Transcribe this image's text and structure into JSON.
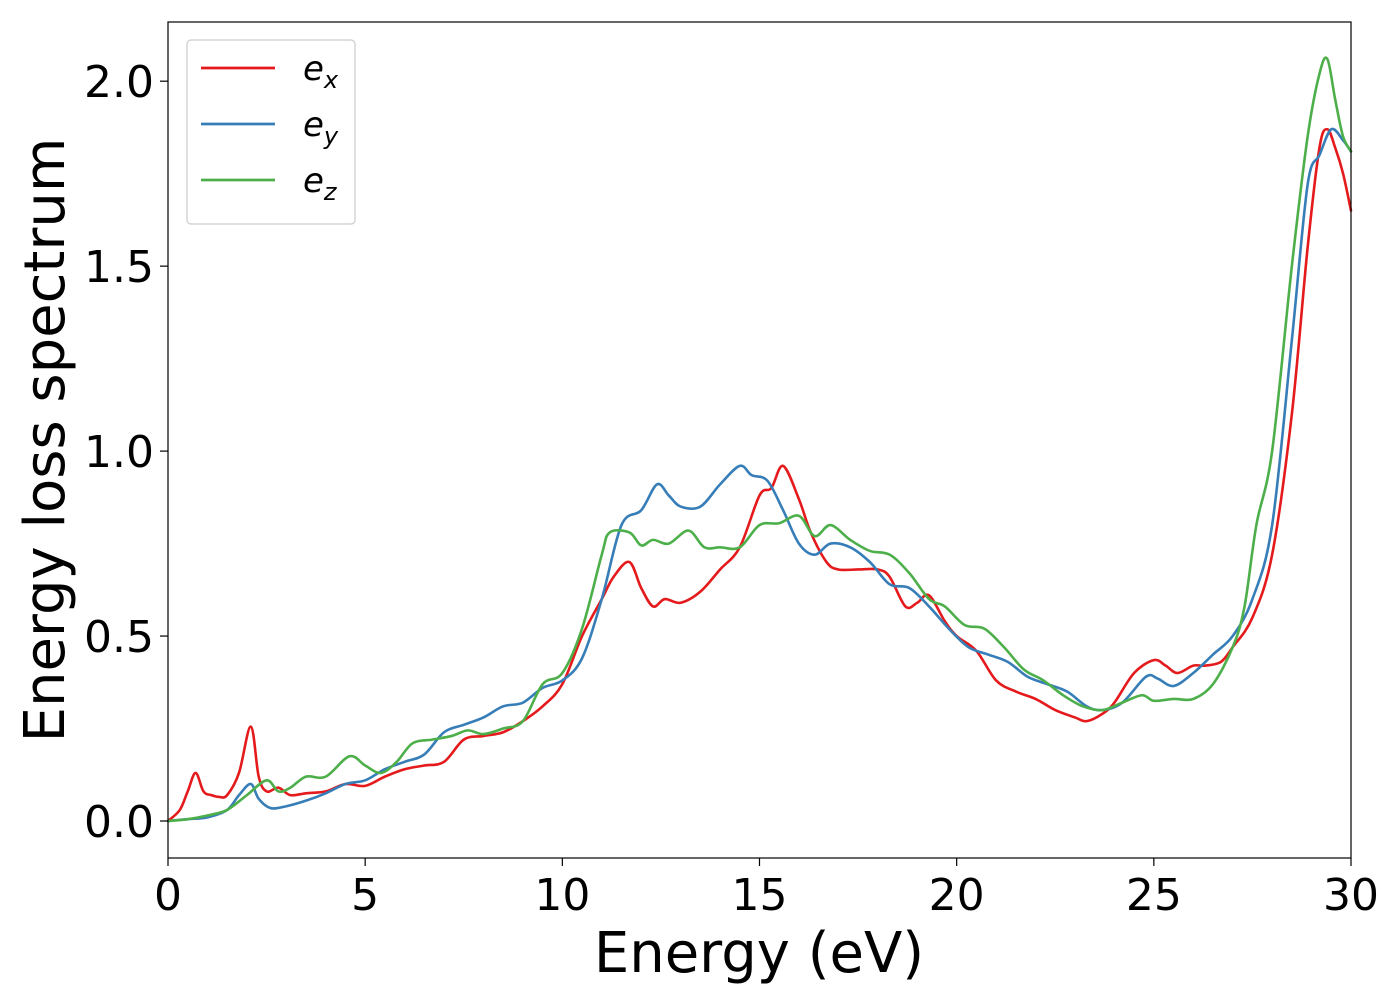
{
  "chart_data": {
    "type": "line",
    "title": "",
    "xlabel": "Energy (eV)",
    "ylabel": "Energy loss spectrum",
    "xlim": [
      0,
      30
    ],
    "ylim": [
      -0.1,
      2.16
    ],
    "xticks": [
      0,
      5,
      10,
      15,
      20,
      25,
      30
    ],
    "xtick_labels": [
      "0",
      "5",
      "10",
      "15",
      "20",
      "25",
      "30"
    ],
    "yticks": [
      0.0,
      0.5,
      1.0,
      1.5,
      2.0
    ],
    "ytick_labels": [
      "0.0",
      "0.5",
      "1.0",
      "1.5",
      "2.0"
    ],
    "grid": false,
    "legend_position": "top-left",
    "series": [
      {
        "name": "e_x",
        "legend_base": "e",
        "legend_sub": "x",
        "color": "#e41a1c",
        "points": [
          [
            0,
            0
          ],
          [
            0.3,
            0.03
          ],
          [
            0.5,
            0.08
          ],
          [
            0.7,
            0.13
          ],
          [
            0.9,
            0.08
          ],
          [
            1.1,
            0.07
          ],
          [
            1.3,
            0.065
          ],
          [
            1.5,
            0.07
          ],
          [
            1.8,
            0.13
          ],
          [
            2.1,
            0.255
          ],
          [
            2.3,
            0.12
          ],
          [
            2.5,
            0.08
          ],
          [
            2.8,
            0.09
          ],
          [
            3.1,
            0.07
          ],
          [
            3.5,
            0.075
          ],
          [
            4,
            0.08
          ],
          [
            4.5,
            0.1
          ],
          [
            5,
            0.095
          ],
          [
            5.5,
            0.12
          ],
          [
            6,
            0.14
          ],
          [
            6.5,
            0.15
          ],
          [
            7,
            0.16
          ],
          [
            7.5,
            0.22
          ],
          [
            8,
            0.23
          ],
          [
            8.5,
            0.24
          ],
          [
            9,
            0.27
          ],
          [
            9.5,
            0.31
          ],
          [
            10,
            0.37
          ],
          [
            10.5,
            0.5
          ],
          [
            11,
            0.6
          ],
          [
            11.3,
            0.66
          ],
          [
            11.7,
            0.7
          ],
          [
            12,
            0.63
          ],
          [
            12.3,
            0.58
          ],
          [
            12.6,
            0.6
          ],
          [
            13,
            0.59
          ],
          [
            13.5,
            0.62
          ],
          [
            14,
            0.68
          ],
          [
            14.5,
            0.74
          ],
          [
            15,
            0.88
          ],
          [
            15.3,
            0.9
          ],
          [
            15.6,
            0.96
          ],
          [
            16,
            0.87
          ],
          [
            16.3,
            0.78
          ],
          [
            16.7,
            0.7
          ],
          [
            17,
            0.68
          ],
          [
            17.5,
            0.68
          ],
          [
            18,
            0.68
          ],
          [
            18.3,
            0.66
          ],
          [
            18.7,
            0.58
          ],
          [
            19,
            0.59
          ],
          [
            19.3,
            0.61
          ],
          [
            19.7,
            0.54
          ],
          [
            20,
            0.5
          ],
          [
            20.5,
            0.46
          ],
          [
            21,
            0.38
          ],
          [
            21.5,
            0.35
          ],
          [
            22,
            0.33
          ],
          [
            22.5,
            0.3
          ],
          [
            23,
            0.28
          ],
          [
            23.3,
            0.27
          ],
          [
            23.7,
            0.29
          ],
          [
            24,
            0.32
          ],
          [
            24.5,
            0.4
          ],
          [
            25,
            0.435
          ],
          [
            25.3,
            0.42
          ],
          [
            25.6,
            0.4
          ],
          [
            26,
            0.42
          ],
          [
            26.3,
            0.42
          ],
          [
            26.7,
            0.43
          ],
          [
            27,
            0.47
          ],
          [
            27.5,
            0.55
          ],
          [
            28,
            0.72
          ],
          [
            28.5,
            1.1
          ],
          [
            28.9,
            1.55
          ],
          [
            29.2,
            1.82
          ],
          [
            29.4,
            1.87
          ],
          [
            29.6,
            1.82
          ],
          [
            29.8,
            1.75
          ],
          [
            30,
            1.65
          ]
        ]
      },
      {
        "name": "e_y",
        "legend_base": "e",
        "legend_sub": "y",
        "color": "#377eb8",
        "points": [
          [
            0,
            0
          ],
          [
            0.5,
            0.005
          ],
          [
            1,
            0.01
          ],
          [
            1.5,
            0.03
          ],
          [
            1.8,
            0.07
          ],
          [
            2.1,
            0.1
          ],
          [
            2.3,
            0.06
          ],
          [
            2.6,
            0.035
          ],
          [
            3,
            0.04
          ],
          [
            3.5,
            0.055
          ],
          [
            4,
            0.075
          ],
          [
            4.5,
            0.1
          ],
          [
            5,
            0.11
          ],
          [
            5.5,
            0.14
          ],
          [
            6,
            0.16
          ],
          [
            6.5,
            0.18
          ],
          [
            7,
            0.24
          ],
          [
            7.5,
            0.26
          ],
          [
            8,
            0.28
          ],
          [
            8.5,
            0.31
          ],
          [
            9,
            0.32
          ],
          [
            9.5,
            0.36
          ],
          [
            10,
            0.38
          ],
          [
            10.5,
            0.44
          ],
          [
            11,
            0.6
          ],
          [
            11.5,
            0.8
          ],
          [
            12,
            0.84
          ],
          [
            12.4,
            0.91
          ],
          [
            12.7,
            0.88
          ],
          [
            13,
            0.85
          ],
          [
            13.5,
            0.85
          ],
          [
            14,
            0.91
          ],
          [
            14.5,
            0.96
          ],
          [
            14.8,
            0.935
          ],
          [
            15.2,
            0.92
          ],
          [
            15.6,
            0.84
          ],
          [
            16,
            0.75
          ],
          [
            16.4,
            0.72
          ],
          [
            16.8,
            0.75
          ],
          [
            17.3,
            0.74
          ],
          [
            17.8,
            0.7
          ],
          [
            18.3,
            0.64
          ],
          [
            18.8,
            0.63
          ],
          [
            19.3,
            0.58
          ],
          [
            19.8,
            0.52
          ],
          [
            20.3,
            0.47
          ],
          [
            20.8,
            0.45
          ],
          [
            21.3,
            0.43
          ],
          [
            21.8,
            0.39
          ],
          [
            22.3,
            0.37
          ],
          [
            22.8,
            0.35
          ],
          [
            23.3,
            0.31
          ],
          [
            23.7,
            0.3
          ],
          [
            24.2,
            0.32
          ],
          [
            24.8,
            0.39
          ],
          [
            25.1,
            0.385
          ],
          [
            25.5,
            0.365
          ],
          [
            26,
            0.4
          ],
          [
            26.5,
            0.45
          ],
          [
            27,
            0.5
          ],
          [
            27.5,
            0.6
          ],
          [
            28,
            0.8
          ],
          [
            28.5,
            1.3
          ],
          [
            28.9,
            1.72
          ],
          [
            29.2,
            1.8
          ],
          [
            29.5,
            1.87
          ],
          [
            29.8,
            1.84
          ],
          [
            30,
            1.81
          ]
        ]
      },
      {
        "name": "e_z",
        "legend_base": "e",
        "legend_sub": "z",
        "color": "#4daf4a",
        "points": [
          [
            0,
            0
          ],
          [
            0.5,
            0.005
          ],
          [
            1,
            0.015
          ],
          [
            1.5,
            0.03
          ],
          [
            2,
            0.07
          ],
          [
            2.5,
            0.11
          ],
          [
            2.8,
            0.08
          ],
          [
            3.1,
            0.09
          ],
          [
            3.5,
            0.12
          ],
          [
            4,
            0.12
          ],
          [
            4.6,
            0.175
          ],
          [
            5,
            0.15
          ],
          [
            5.4,
            0.13
          ],
          [
            5.8,
            0.16
          ],
          [
            6.2,
            0.21
          ],
          [
            6.7,
            0.22
          ],
          [
            7.2,
            0.23
          ],
          [
            7.6,
            0.245
          ],
          [
            8,
            0.235
          ],
          [
            8.5,
            0.25
          ],
          [
            9,
            0.27
          ],
          [
            9.5,
            0.37
          ],
          [
            10,
            0.4
          ],
          [
            10.5,
            0.52
          ],
          [
            11,
            0.72
          ],
          [
            11.2,
            0.78
          ],
          [
            11.7,
            0.78
          ],
          [
            12,
            0.745
          ],
          [
            12.3,
            0.76
          ],
          [
            12.7,
            0.75
          ],
          [
            13.2,
            0.785
          ],
          [
            13.6,
            0.74
          ],
          [
            14,
            0.74
          ],
          [
            14.5,
            0.74
          ],
          [
            15,
            0.8
          ],
          [
            15.5,
            0.805
          ],
          [
            16,
            0.825
          ],
          [
            16.4,
            0.77
          ],
          [
            16.8,
            0.8
          ],
          [
            17.3,
            0.76
          ],
          [
            17.8,
            0.73
          ],
          [
            18.3,
            0.72
          ],
          [
            18.8,
            0.67
          ],
          [
            19.3,
            0.6
          ],
          [
            19.7,
            0.58
          ],
          [
            20.2,
            0.53
          ],
          [
            20.7,
            0.52
          ],
          [
            21.2,
            0.47
          ],
          [
            21.7,
            0.41
          ],
          [
            22.2,
            0.38
          ],
          [
            22.7,
            0.34
          ],
          [
            23.2,
            0.31
          ],
          [
            23.7,
            0.3
          ],
          [
            24.2,
            0.32
          ],
          [
            24.7,
            0.34
          ],
          [
            25,
            0.325
          ],
          [
            25.5,
            0.33
          ],
          [
            26,
            0.33
          ],
          [
            26.5,
            0.37
          ],
          [
            27,
            0.47
          ],
          [
            27.3,
            0.58
          ],
          [
            27.6,
            0.8
          ],
          [
            28,
            1.0
          ],
          [
            28.5,
            1.5
          ],
          [
            28.9,
            1.85
          ],
          [
            29.2,
            2.02
          ],
          [
            29.4,
            2.06
          ],
          [
            29.6,
            1.95
          ],
          [
            29.8,
            1.85
          ],
          [
            30,
            1.81
          ]
        ]
      }
    ]
  }
}
